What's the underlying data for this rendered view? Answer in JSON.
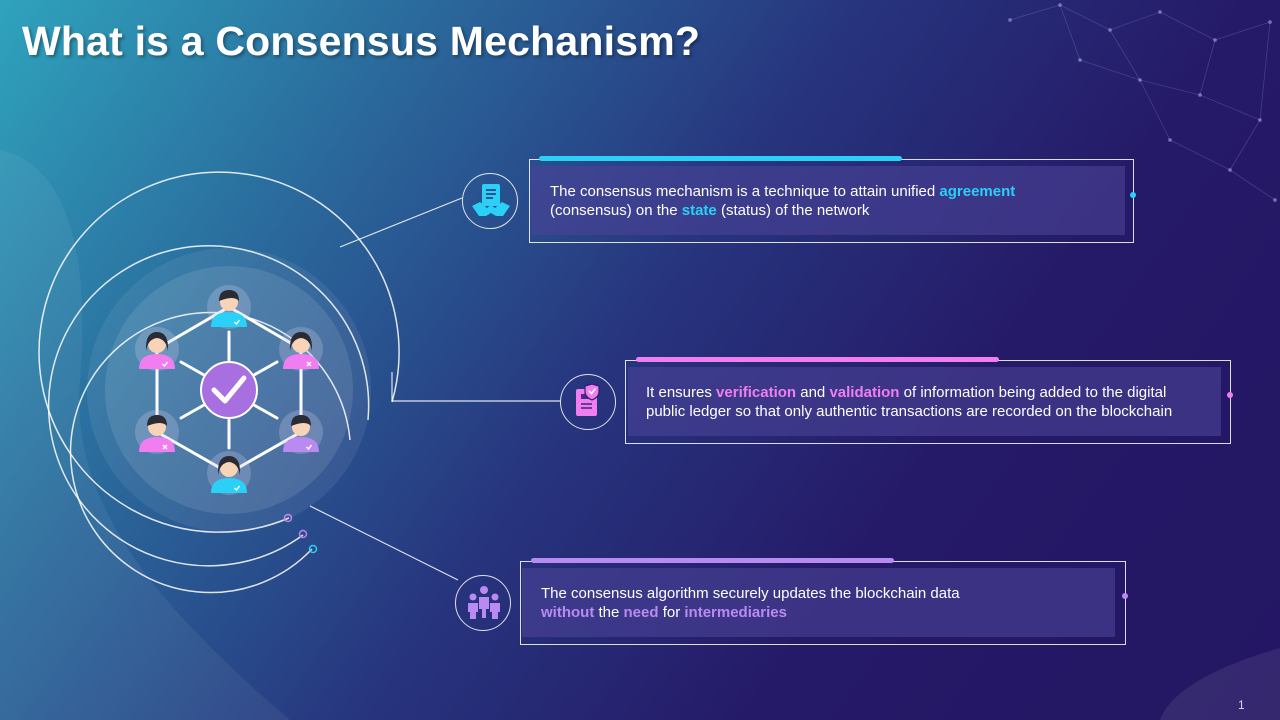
{
  "title": "What is a Consensus Mechanism?",
  "colors": {
    "cyan": "#2ad0f5",
    "pink": "#f07ef0",
    "purple": "#b98af2",
    "hub": "#a86fe0"
  },
  "points": [
    {
      "icon": "handshake-document-icon",
      "accent": "cyan",
      "line1": [
        {
          "t": "The consensus mechanism is a technique to attain unified "
        },
        {
          "t": "agreement",
          "hl": true
        }
      ],
      "line2": [
        {
          "t": "(consensus) on the "
        },
        {
          "t": "state",
          "hl": true
        },
        {
          "t": " (status) of the network"
        }
      ]
    },
    {
      "icon": "verified-document-icon",
      "accent": "pink",
      "line1": [
        {
          "t": "It ensures "
        },
        {
          "t": "verification",
          "hl": true
        },
        {
          "t": " and "
        },
        {
          "t": "validation",
          "hl": true
        },
        {
          "t": " of information being added to the digital"
        }
      ],
      "line2": [
        {
          "t": "public ledger so that only authentic transactions are recorded on the blockchain"
        }
      ]
    },
    {
      "icon": "people-icon",
      "accent": "purple",
      "line1": [
        {
          "t": "The consensus algorithm securely updates the blockchain data"
        }
      ],
      "line2": [
        {
          "t": "without",
          "hl": true
        },
        {
          "t": " the "
        },
        {
          "t": "need",
          "hl": true
        },
        {
          "t": " for "
        },
        {
          "t": "intermediaries",
          "hl": true
        }
      ]
    }
  ],
  "page_number": "1"
}
